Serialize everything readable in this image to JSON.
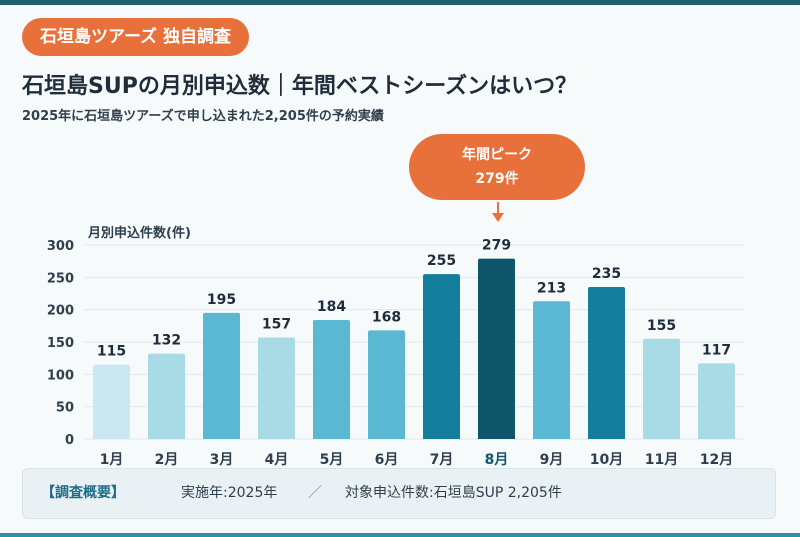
{
  "header": {
    "badge": "石垣島ツアーズ 独自調査",
    "title": "石垣島SUPの月別申込数｜年間ベストシーズンはいつ？",
    "subtitle": "2025年に石垣島ツアーズで申し込まれた2,205件の予約実績"
  },
  "callout": {
    "line1": "年間ピーク",
    "line2": "279件"
  },
  "footer": {
    "title": "【調査概要】",
    "item1": "実施年:2025年",
    "separator": "／",
    "item2": "対象申込件数:石垣島SUP 2,205件"
  },
  "chart_data": {
    "type": "bar",
    "title": "石垣島SUPの月別申込数｜年間ベストシーズンはいつ？",
    "ylabel": "月別申込件数(件)",
    "xlabel": "",
    "categories": [
      "1月",
      "2月",
      "3月",
      "4月",
      "5月",
      "6月",
      "7月",
      "8月",
      "9月",
      "10月",
      "11月",
      "12月"
    ],
    "values": [
      115,
      132,
      195,
      157,
      184,
      168,
      255,
      279,
      213,
      235,
      155,
      117
    ],
    "ylim": [
      0,
      300
    ],
    "yticks": [
      0,
      50,
      100,
      150,
      200,
      250,
      300
    ],
    "grid": true,
    "highlight_index": 7,
    "colors": [
      "#c9e8ef",
      "#a9dbe7",
      "#5bb8d2",
      "#a9dbe7",
      "#5bb8d2",
      "#5bb8d2",
      "#147f9c",
      "#10566b",
      "#5bb8d2",
      "#147f9c",
      "#a9dbe7",
      "#a9dbe7"
    ],
    "label_color": "#1f2d3a",
    "highlight_label_color": "#10566b"
  }
}
